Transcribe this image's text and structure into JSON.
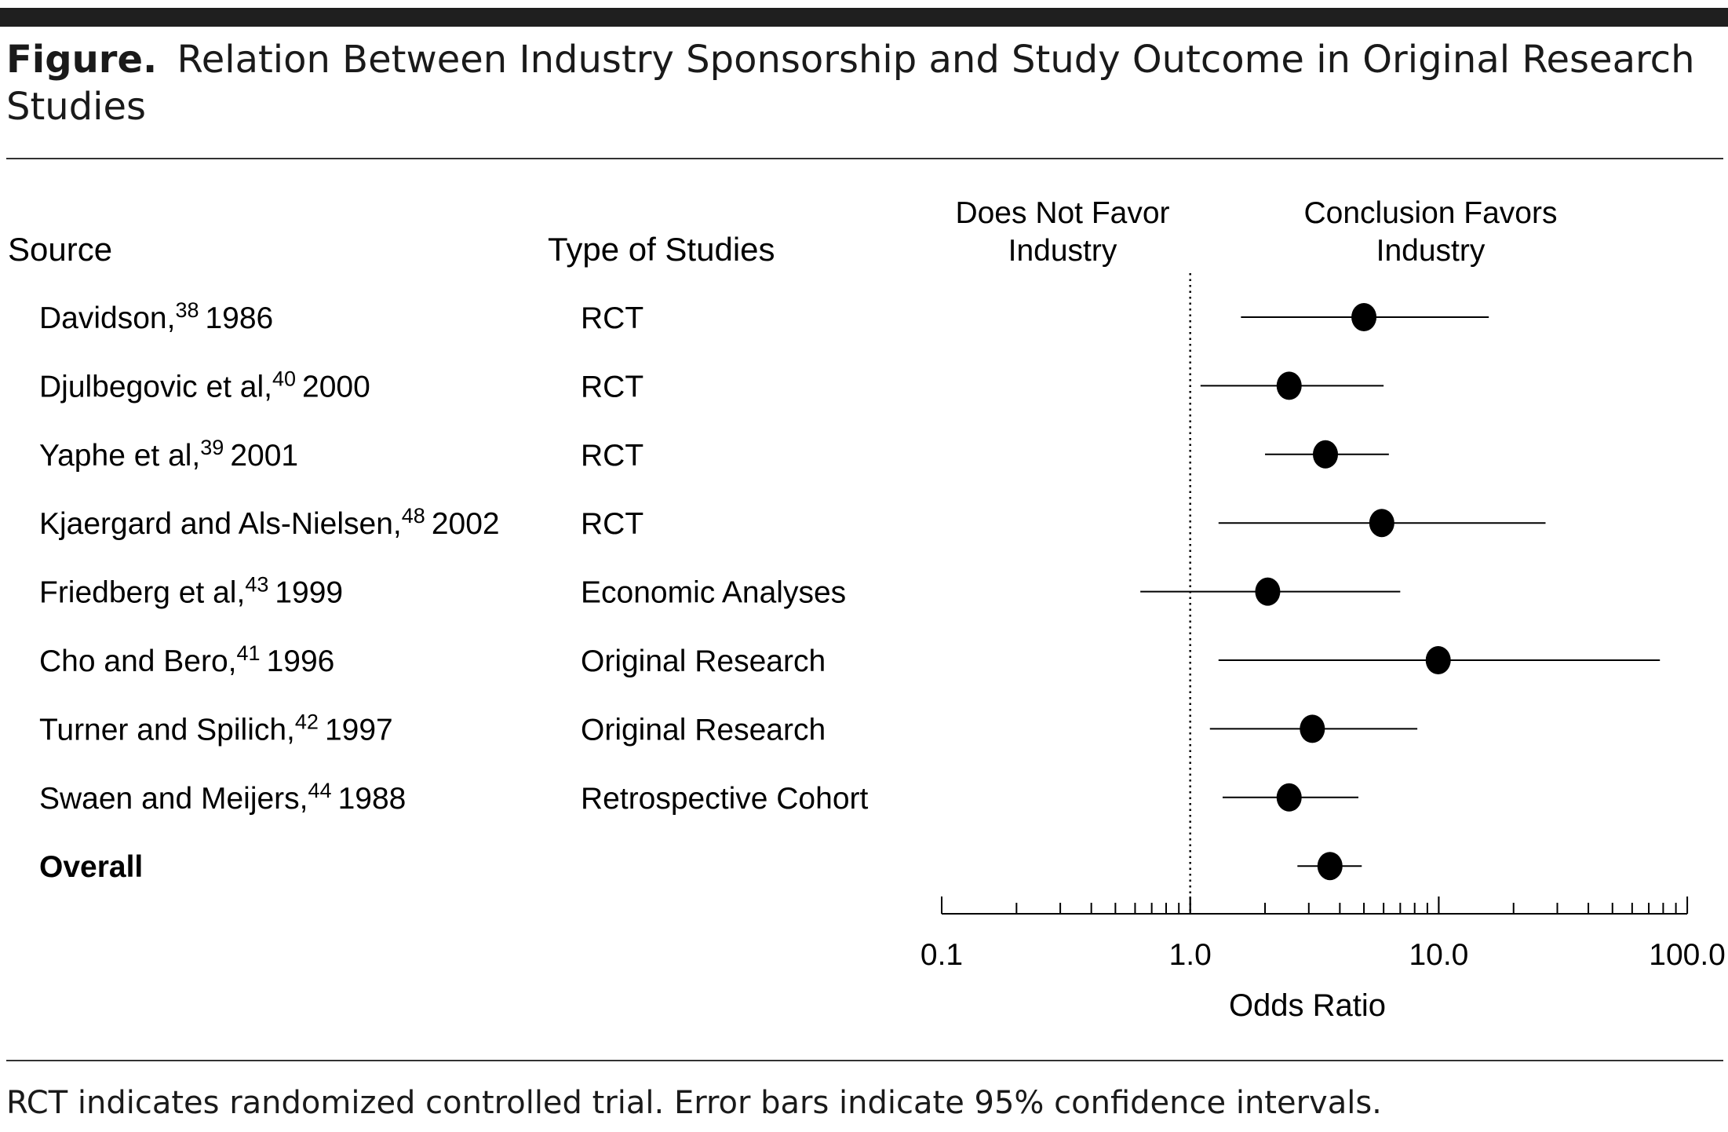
{
  "caption": {
    "label": "Figure.",
    "title_line1": "Relation Between Industry Sponsorship and Study Outcome in Original Research",
    "title_line2": "Studies"
  },
  "footnote": "RCT indicates randomized controlled trial. Error bars indicate 95% confidence intervals.",
  "chart_data": {
    "type": "forest",
    "columns": {
      "source": "Source",
      "type": "Type of Studies"
    },
    "direction_labels": {
      "left": [
        "Does Not Favor",
        "Industry"
      ],
      "right": [
        "Conclusion Favors",
        "Industry"
      ]
    },
    "xlabel": "Odds Ratio",
    "xscale": "log",
    "xlim": [
      0.1,
      100
    ],
    "xticks": [
      "0.1",
      "1.0",
      "10.0",
      "100.0"
    ],
    "reference_line": 1.0,
    "rows": [
      {
        "source": "Davidson,",
        "ref": "38",
        "year": "1986",
        "type": "RCT",
        "or": 5.0,
        "lo": 1.6,
        "hi": 15.9
      },
      {
        "source": "Djulbegovic et al,",
        "ref": "40",
        "year": "2000",
        "type": "RCT",
        "or": 2.5,
        "lo": 1.1,
        "hi": 6.0
      },
      {
        "source": "Yaphe et al,",
        "ref": "39",
        "year": "2001",
        "type": "RCT",
        "or": 3.5,
        "lo": 2.0,
        "hi": 6.3
      },
      {
        "source": "Kjaergard and Als-Nielsen,",
        "ref": "48",
        "year": "2002",
        "type": "RCT",
        "or": 5.9,
        "lo": 1.3,
        "hi": 26.9
      },
      {
        "source": "Friedberg et al,",
        "ref": "43",
        "year": "1999",
        "type": "Economic Analyses",
        "or": 2.05,
        "lo": 0.63,
        "hi": 7.0
      },
      {
        "source": "Cho and Bero,",
        "ref": "41",
        "year": "1996",
        "type": "Original Research",
        "or": 9.95,
        "lo": 1.3,
        "hi": 77.6
      },
      {
        "source": "Turner and Spilich,",
        "ref": "42",
        "year": "1997",
        "type": "Original Research",
        "or": 3.1,
        "lo": 1.2,
        "hi": 8.2
      },
      {
        "source": "Swaen and Meijers,",
        "ref": "44",
        "year": "1988",
        "type": "Retrospective Cohort",
        "or": 2.5,
        "lo": 1.35,
        "hi": 4.75
      },
      {
        "source": "Overall",
        "ref": "",
        "year": "",
        "type": "",
        "or": 3.65,
        "lo": 2.7,
        "hi": 4.9,
        "bold": true
      }
    ]
  }
}
